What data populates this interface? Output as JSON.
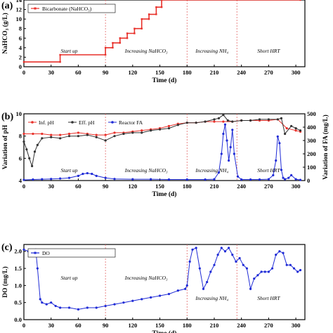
{
  "colors": {
    "bicarbonate": "#e8302a",
    "inf_ph": "#e8302a",
    "eff_ph": "#333333",
    "reactor_fa": "#1f2bd6",
    "do": "#1f2bd6",
    "divider": "#e36a6a"
  },
  "phase_labels": [
    "Start up",
    "Increasing NaHCO₃",
    "Increasing NH₄",
    "Short HRT"
  ],
  "chart_data": [
    {
      "panel": "(a)",
      "type": "line",
      "xlabel": "Time (d)",
      "ylabel": "NaHCO₃ (g/L)",
      "xlim": [
        0,
        310
      ],
      "ylim": [
        0,
        14
      ],
      "xticks": [
        "0",
        "30",
        "60",
        "90",
        "120",
        "150",
        "180",
        "210",
        "240",
        "270",
        "300"
      ],
      "yticks": [
        "0",
        "2",
        "4",
        "6",
        "8",
        "10",
        "12",
        "14"
      ],
      "phase_boundaries": [
        90,
        180,
        235
      ],
      "legend": "top-left",
      "series": [
        {
          "name": "Bicarbonate (NaHCO₃)",
          "x": [
            0,
            40,
            40,
            90,
            90,
            98,
            98,
            106,
            106,
            114,
            114,
            122,
            122,
            130,
            130,
            138,
            138,
            146,
            146,
            152,
            152,
            305
          ],
          "y": [
            1,
            1,
            2.5,
            2.5,
            4,
            4,
            5,
            5,
            6,
            6,
            7,
            7,
            8,
            8,
            10,
            10,
            11,
            11,
            12.5,
            12.5,
            14,
            14
          ]
        }
      ]
    },
    {
      "panel": "(b)",
      "type": "line",
      "xlabel": "Time (d)",
      "ylabel": "Variation of pH",
      "y2label": "Variation of FA (mg/L)",
      "xlim": [
        0,
        310
      ],
      "ylim": [
        4,
        10
      ],
      "y2lim": [
        0,
        500
      ],
      "xticks": [
        "0",
        "30",
        "60",
        "90",
        "120",
        "150",
        "180",
        "210",
        "240",
        "270",
        "300"
      ],
      "yticks": [
        "4",
        "6",
        "8",
        "10"
      ],
      "y2ticks": [
        "0",
        "100",
        "200",
        "300",
        "400",
        "500"
      ],
      "phase_boundaries": [
        90,
        180,
        235
      ],
      "legend": "top-left",
      "series": [
        {
          "name": "Inf. pH",
          "axis": "left",
          "x": [
            0,
            10,
            20,
            30,
            40,
            50,
            60,
            70,
            80,
            90,
            100,
            110,
            120,
            130,
            140,
            150,
            160,
            170,
            180,
            190,
            200,
            210,
            220,
            230,
            240,
            250,
            260,
            270,
            280,
            290,
            300,
            305
          ],
          "y": [
            8.2,
            8.2,
            8.2,
            8.1,
            8.1,
            8.2,
            8.3,
            8.2,
            8.1,
            8.1,
            8.3,
            8.3,
            8.4,
            8.5,
            8.6,
            8.7,
            8.9,
            9.1,
            9.2,
            9.2,
            9.3,
            9.3,
            9.3,
            9.3,
            9.4,
            9.4,
            9.4,
            9.4,
            9.5,
            8.7,
            8.5,
            8.4
          ]
        },
        {
          "name": "Eff. pH",
          "axis": "left",
          "x": [
            0,
            3,
            6,
            9,
            12,
            15,
            20,
            30,
            40,
            50,
            60,
            70,
            80,
            90,
            100,
            110,
            120,
            130,
            140,
            150,
            160,
            170,
            180,
            190,
            200,
            210,
            215,
            220,
            225,
            230,
            240,
            250,
            260,
            270,
            280,
            284,
            288,
            295,
            300,
            305
          ],
          "y": [
            7.5,
            6.8,
            6.0,
            5.3,
            6.6,
            7.2,
            7.8,
            7.9,
            7.8,
            8.0,
            8.0,
            8.1,
            7.9,
            7.6,
            8.0,
            8.2,
            8.3,
            8.3,
            8.5,
            8.6,
            8.7,
            9.0,
            9.2,
            9.2,
            9.3,
            9.5,
            9.6,
            9.9,
            9.4,
            9.3,
            9.4,
            9.4,
            9.5,
            9.5,
            9.5,
            9.6,
            8.2,
            8.9,
            8.7,
            8.5
          ]
        },
        {
          "name": "Reactor FA",
          "axis": "right",
          "x": [
            0,
            10,
            20,
            30,
            40,
            50,
            60,
            65,
            70,
            75,
            80,
            90,
            100,
            120,
            140,
            160,
            180,
            200,
            210,
            215,
            218,
            220,
            222,
            224,
            226,
            228,
            230,
            232,
            236,
            240,
            250,
            260,
            270,
            275,
            278,
            280,
            282,
            284,
            286,
            288,
            292,
            295,
            300,
            305
          ],
          "y": [
            5,
            8,
            10,
            12,
            15,
            20,
            35,
            50,
            55,
            50,
            35,
            20,
            12,
            10,
            10,
            8,
            8,
            8,
            10,
            60,
            200,
            350,
            420,
            300,
            150,
            250,
            380,
            200,
            30,
            8,
            8,
            8,
            10,
            40,
            150,
            330,
            280,
            80,
            20,
            10,
            20,
            40,
            10,
            5
          ]
        }
      ]
    },
    {
      "panel": "(c)",
      "type": "line",
      "xlabel": "Time (d)",
      "ylabel": "DO (mg/L)",
      "xlim": [
        0,
        310
      ],
      "ylim": [
        0,
        2.2
      ],
      "xticks": [
        "0",
        "30",
        "60",
        "90",
        "120",
        "150",
        "180",
        "210",
        "240",
        "270",
        "300"
      ],
      "yticks": [
        "0.0",
        "0.5",
        "1.0",
        "1.5",
        "2.0"
      ],
      "phase_boundaries": [
        90,
        180,
        235
      ],
      "legend": "top-left",
      "series": [
        {
          "name": "DO",
          "x": [
            0,
            5,
            10,
            13,
            15,
            18,
            20,
            25,
            30,
            35,
            40,
            50,
            60,
            70,
            80,
            90,
            100,
            110,
            120,
            130,
            140,
            150,
            160,
            170,
            178,
            180,
            183,
            186,
            190,
            194,
            198,
            202,
            206,
            210,
            214,
            218,
            222,
            226,
            230,
            234,
            238,
            242,
            246,
            250,
            254,
            258,
            262,
            266,
            270,
            274,
            278,
            282,
            286,
            290,
            294,
            298,
            302,
            305
          ],
          "y": [
            2.05,
            2.0,
            2.0,
            2.05,
            1.5,
            0.6,
            0.5,
            0.45,
            0.5,
            0.4,
            0.35,
            0.35,
            0.3,
            0.35,
            0.35,
            0.4,
            0.45,
            0.5,
            0.55,
            0.6,
            0.65,
            0.7,
            0.75,
            0.85,
            0.9,
            1.0,
            1.7,
            2.05,
            2.1,
            1.5,
            0.9,
            1.1,
            1.4,
            1.6,
            1.9,
            2.1,
            2.0,
            2.1,
            1.9,
            1.7,
            1.8,
            1.6,
            1.5,
            0.9,
            1.2,
            1.3,
            1.4,
            1.4,
            1.4,
            1.5,
            1.9,
            2.0,
            1.95,
            1.6,
            1.6,
            1.5,
            1.4,
            1.45
          ]
        }
      ]
    }
  ]
}
